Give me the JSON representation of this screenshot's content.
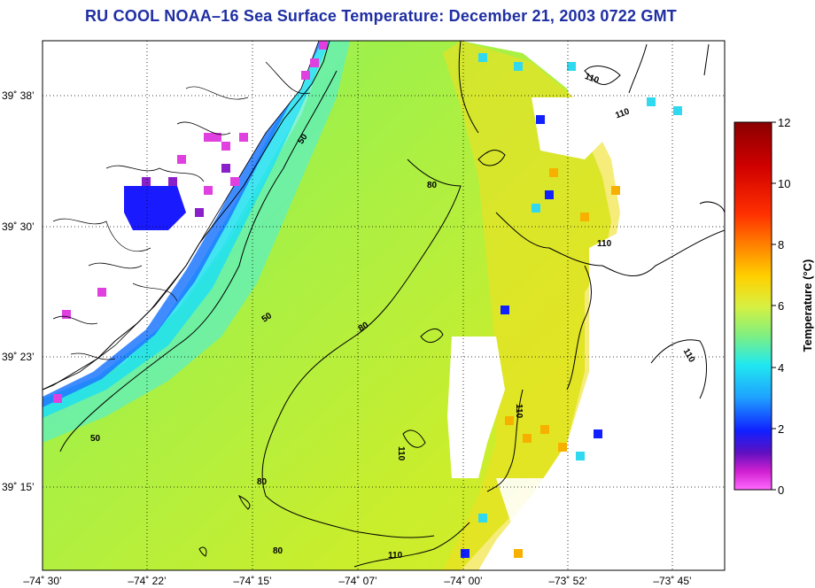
{
  "title": "RU COOL  NOAA–16  Sea Surface Temperature:  December 21, 2003 0722 GMT",
  "map": {
    "lat_labels": [
      "39˚ 38’",
      "39˚ 30’",
      "39˚ 23’",
      "39˚ 15’"
    ],
    "lon_labels": [
      "–74˚ 30’",
      "–74˚ 22’",
      "–74˚ 15’",
      "–74˚ 07’",
      "–74˚ 00’",
      "–73˚ 52’",
      "–73˚ 45’"
    ],
    "contour_labels": [
      "50",
      "50",
      "50",
      "80",
      "80",
      "80",
      "80",
      "110",
      "110",
      "110",
      "110",
      "110",
      "110",
      "110"
    ],
    "colors": {
      "land": "#ffffff",
      "coastline": "#000000",
      "grid": "#000000",
      "sst_cold": "#1a1aff",
      "sst_mid": "#9ff04a",
      "sst_warm": "#f5d800"
    }
  },
  "colorbar": {
    "label": "Temperature (°C)",
    "ticks": [
      "12",
      "10",
      "8",
      "6",
      "4",
      "2",
      "0"
    ],
    "min": 0,
    "max": 12,
    "stops": [
      "#8b0000",
      "#ff1f1f",
      "#ff8c00",
      "#ffd700",
      "#c8f050",
      "#3fe0e0",
      "#1e6bff",
      "#1a00c8",
      "#c000c0",
      "#ff60ff"
    ]
  }
}
